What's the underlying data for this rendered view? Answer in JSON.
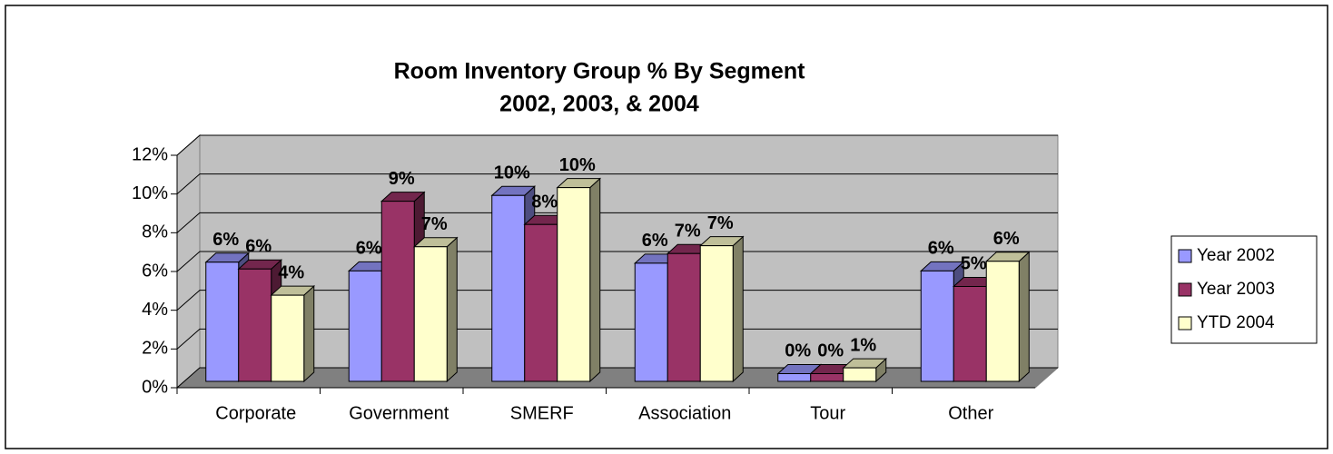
{
  "chart_data": {
    "type": "bar3d",
    "title": "Room Inventory Group % By Segment",
    "subtitle": "2002, 2003, & 2004",
    "categories": [
      "Corporate",
      "Government",
      "SMERF",
      "Association",
      "Tour",
      "Other"
    ],
    "series": [
      {
        "name": "Year 2002",
        "color": "#9999ff",
        "values": [
          6.15,
          5.7,
          9.6,
          6.1,
          0.4,
          5.7
        ],
        "value_labels": [
          "6%",
          "6%",
          "10%",
          "6%",
          "0%",
          "6%"
        ]
      },
      {
        "name": "Year 2003",
        "color": "#993366",
        "values": [
          5.8,
          9.3,
          8.1,
          6.6,
          0.4,
          4.9
        ],
        "value_labels": [
          "6%",
          "9%",
          "8%",
          "7%",
          "0%",
          "5%"
        ]
      },
      {
        "name": "YTD 2004",
        "color": "#ffffcc",
        "values": [
          4.45,
          6.95,
          10.0,
          7.0,
          0.7,
          6.2
        ],
        "value_labels": [
          "4%",
          "7%",
          "10%",
          "7%",
          "1%",
          "6%"
        ]
      }
    ],
    "ylim": [
      0,
      12
    ],
    "yticks": [
      {
        "value": 0,
        "label": "0%"
      },
      {
        "value": 2,
        "label": "2%"
      },
      {
        "value": 4,
        "label": "4%"
      },
      {
        "value": 6,
        "label": "6%"
      },
      {
        "value": 8,
        "label": "8%"
      },
      {
        "value": 10,
        "label": "10%"
      },
      {
        "value": 12,
        "label": "12%"
      }
    ],
    "grid": true,
    "legend": "right"
  }
}
